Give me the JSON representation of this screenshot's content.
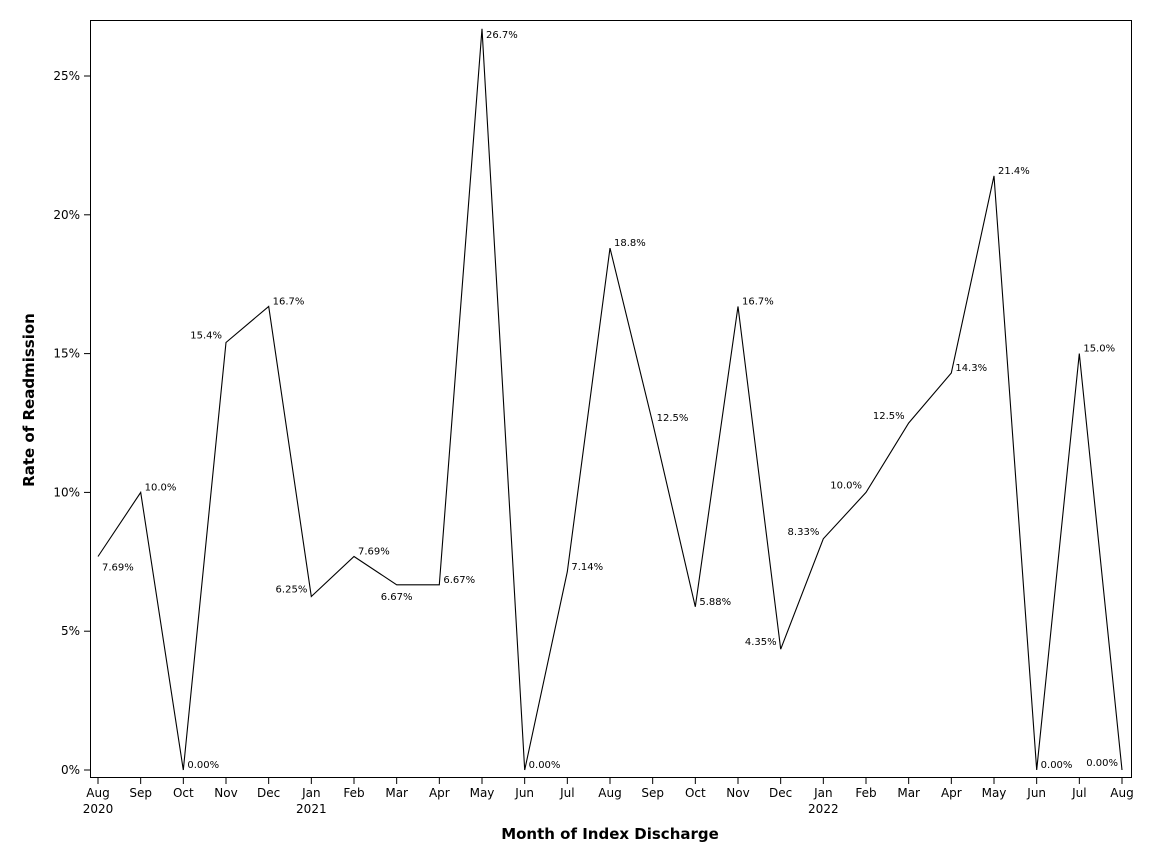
{
  "chart_data": {
    "type": "line",
    "title": "",
    "xlabel": "Month of Index Discharge",
    "ylabel": "Rate of Readmission",
    "ylim": [
      0,
      27.2
    ],
    "yticks": [
      0,
      5,
      10,
      15,
      20,
      25
    ],
    "ytick_labels": [
      "0%",
      "5%",
      "10%",
      "15%",
      "20%",
      "25%"
    ],
    "grid": false,
    "x": [
      "Aug 2020",
      "Sep 2020",
      "Oct 2020",
      "Nov 2020",
      "Dec 2020",
      "Jan 2021",
      "Feb 2021",
      "Mar 2021",
      "Apr 2021",
      "May 2021",
      "Jun 2021",
      "Jul 2021",
      "Aug 2021",
      "Sep 2021",
      "Oct 2021",
      "Nov 2021",
      "Dec 2021",
      "Jan 2022",
      "Feb 2022",
      "Mar 2022",
      "Apr 2022",
      "May 2022",
      "Jun 2022",
      "Jul 2022",
      "Aug 2022"
    ],
    "tick_months": [
      "Aug",
      "Sep",
      "Oct",
      "Nov",
      "Dec",
      "Jan",
      "Feb",
      "Mar",
      "Apr",
      "May",
      "Jun",
      "Jul",
      "Aug",
      "Sep",
      "Oct",
      "Nov",
      "Dec",
      "Jan",
      "Feb",
      "Mar",
      "Apr",
      "May",
      "Jun",
      "Jul",
      "Aug"
    ],
    "tick_years": [
      "2020",
      "",
      "",
      "",
      "",
      "2021",
      "",
      "",
      "",
      "",
      "",
      "",
      "",
      "",
      "",
      "",
      "",
      "2022",
      "",
      "",
      "",
      "",
      "",
      "",
      ""
    ],
    "series": [
      {
        "name": "Rate of Readmission",
        "values": [
          7.69,
          10.0,
          0.0,
          15.4,
          16.7,
          6.25,
          7.69,
          6.67,
          6.67,
          26.7,
          0.0,
          7.14,
          18.8,
          12.5,
          5.88,
          16.7,
          4.35,
          8.33,
          10.0,
          12.5,
          14.3,
          21.4,
          0.0,
          15.0,
          0.0
        ],
        "labels": [
          "7.69%",
          "10.0%",
          "0.00%",
          "15.4%",
          "16.7%",
          "6.25%",
          "7.69%",
          "6.67%",
          "6.67%",
          "26.7%",
          "0.00%",
          "7.14%",
          "18.8%",
          "12.5%",
          "5.88%",
          "16.7%",
          "4.35%",
          "8.33%",
          "10.0%",
          "12.5%",
          "14.3%",
          "21.4%",
          "0.00%",
          "15.0%",
          "0.00%"
        ],
        "label_positions": [
          "below-right",
          "right",
          "right",
          "left",
          "right",
          "left",
          "right",
          "below",
          "right",
          "right",
          "right",
          "right",
          "right",
          "right",
          "right",
          "right",
          "left",
          "left",
          "left",
          "left",
          "right",
          "right",
          "right",
          "right",
          "left"
        ]
      }
    ]
  }
}
